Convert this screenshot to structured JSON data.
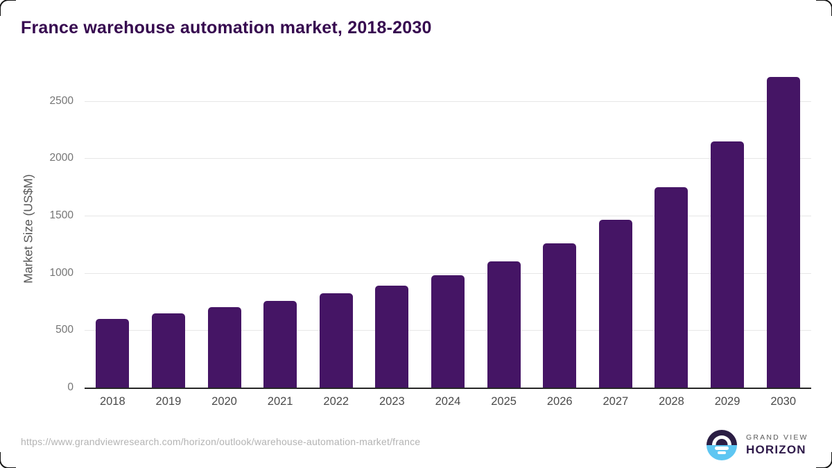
{
  "title": "France warehouse automation market, 2018-2030",
  "source_url": "https://www.grandviewresearch.com/horizon/outlook/warehouse-automation-market/france",
  "logo": {
    "line1": "GRAND VIEW",
    "line2": "HORIZON"
  },
  "colors": {
    "bar": "#451565",
    "title_text": "#36094f",
    "gridline": "#e7e7e7",
    "axis_line": "#262626",
    "y_tick_text": "#757575",
    "x_tick_text": "#4a4a4a",
    "axis_title_text": "#575757",
    "url_text": "#b3b3b3",
    "logo_dark": "#2b1e44",
    "logo_blue": "#5ec6f2"
  },
  "chart_data": {
    "type": "bar",
    "title": "France warehouse automation market, 2018-2030",
    "categories": [
      "2018",
      "2019",
      "2020",
      "2021",
      "2022",
      "2023",
      "2024",
      "2025",
      "2026",
      "2027",
      "2028",
      "2029",
      "2030"
    ],
    "values": [
      600,
      650,
      700,
      755,
      820,
      890,
      980,
      1100,
      1255,
      1465,
      1750,
      2145,
      2710
    ],
    "xlabel": "",
    "ylabel": "Market Size (US$M)",
    "ylim": [
      0,
      2775
    ],
    "yticks": [
      0,
      500,
      1000,
      1500,
      2000,
      2500
    ],
    "grid": true,
    "legend": false,
    "bar_color": "#451565"
  }
}
